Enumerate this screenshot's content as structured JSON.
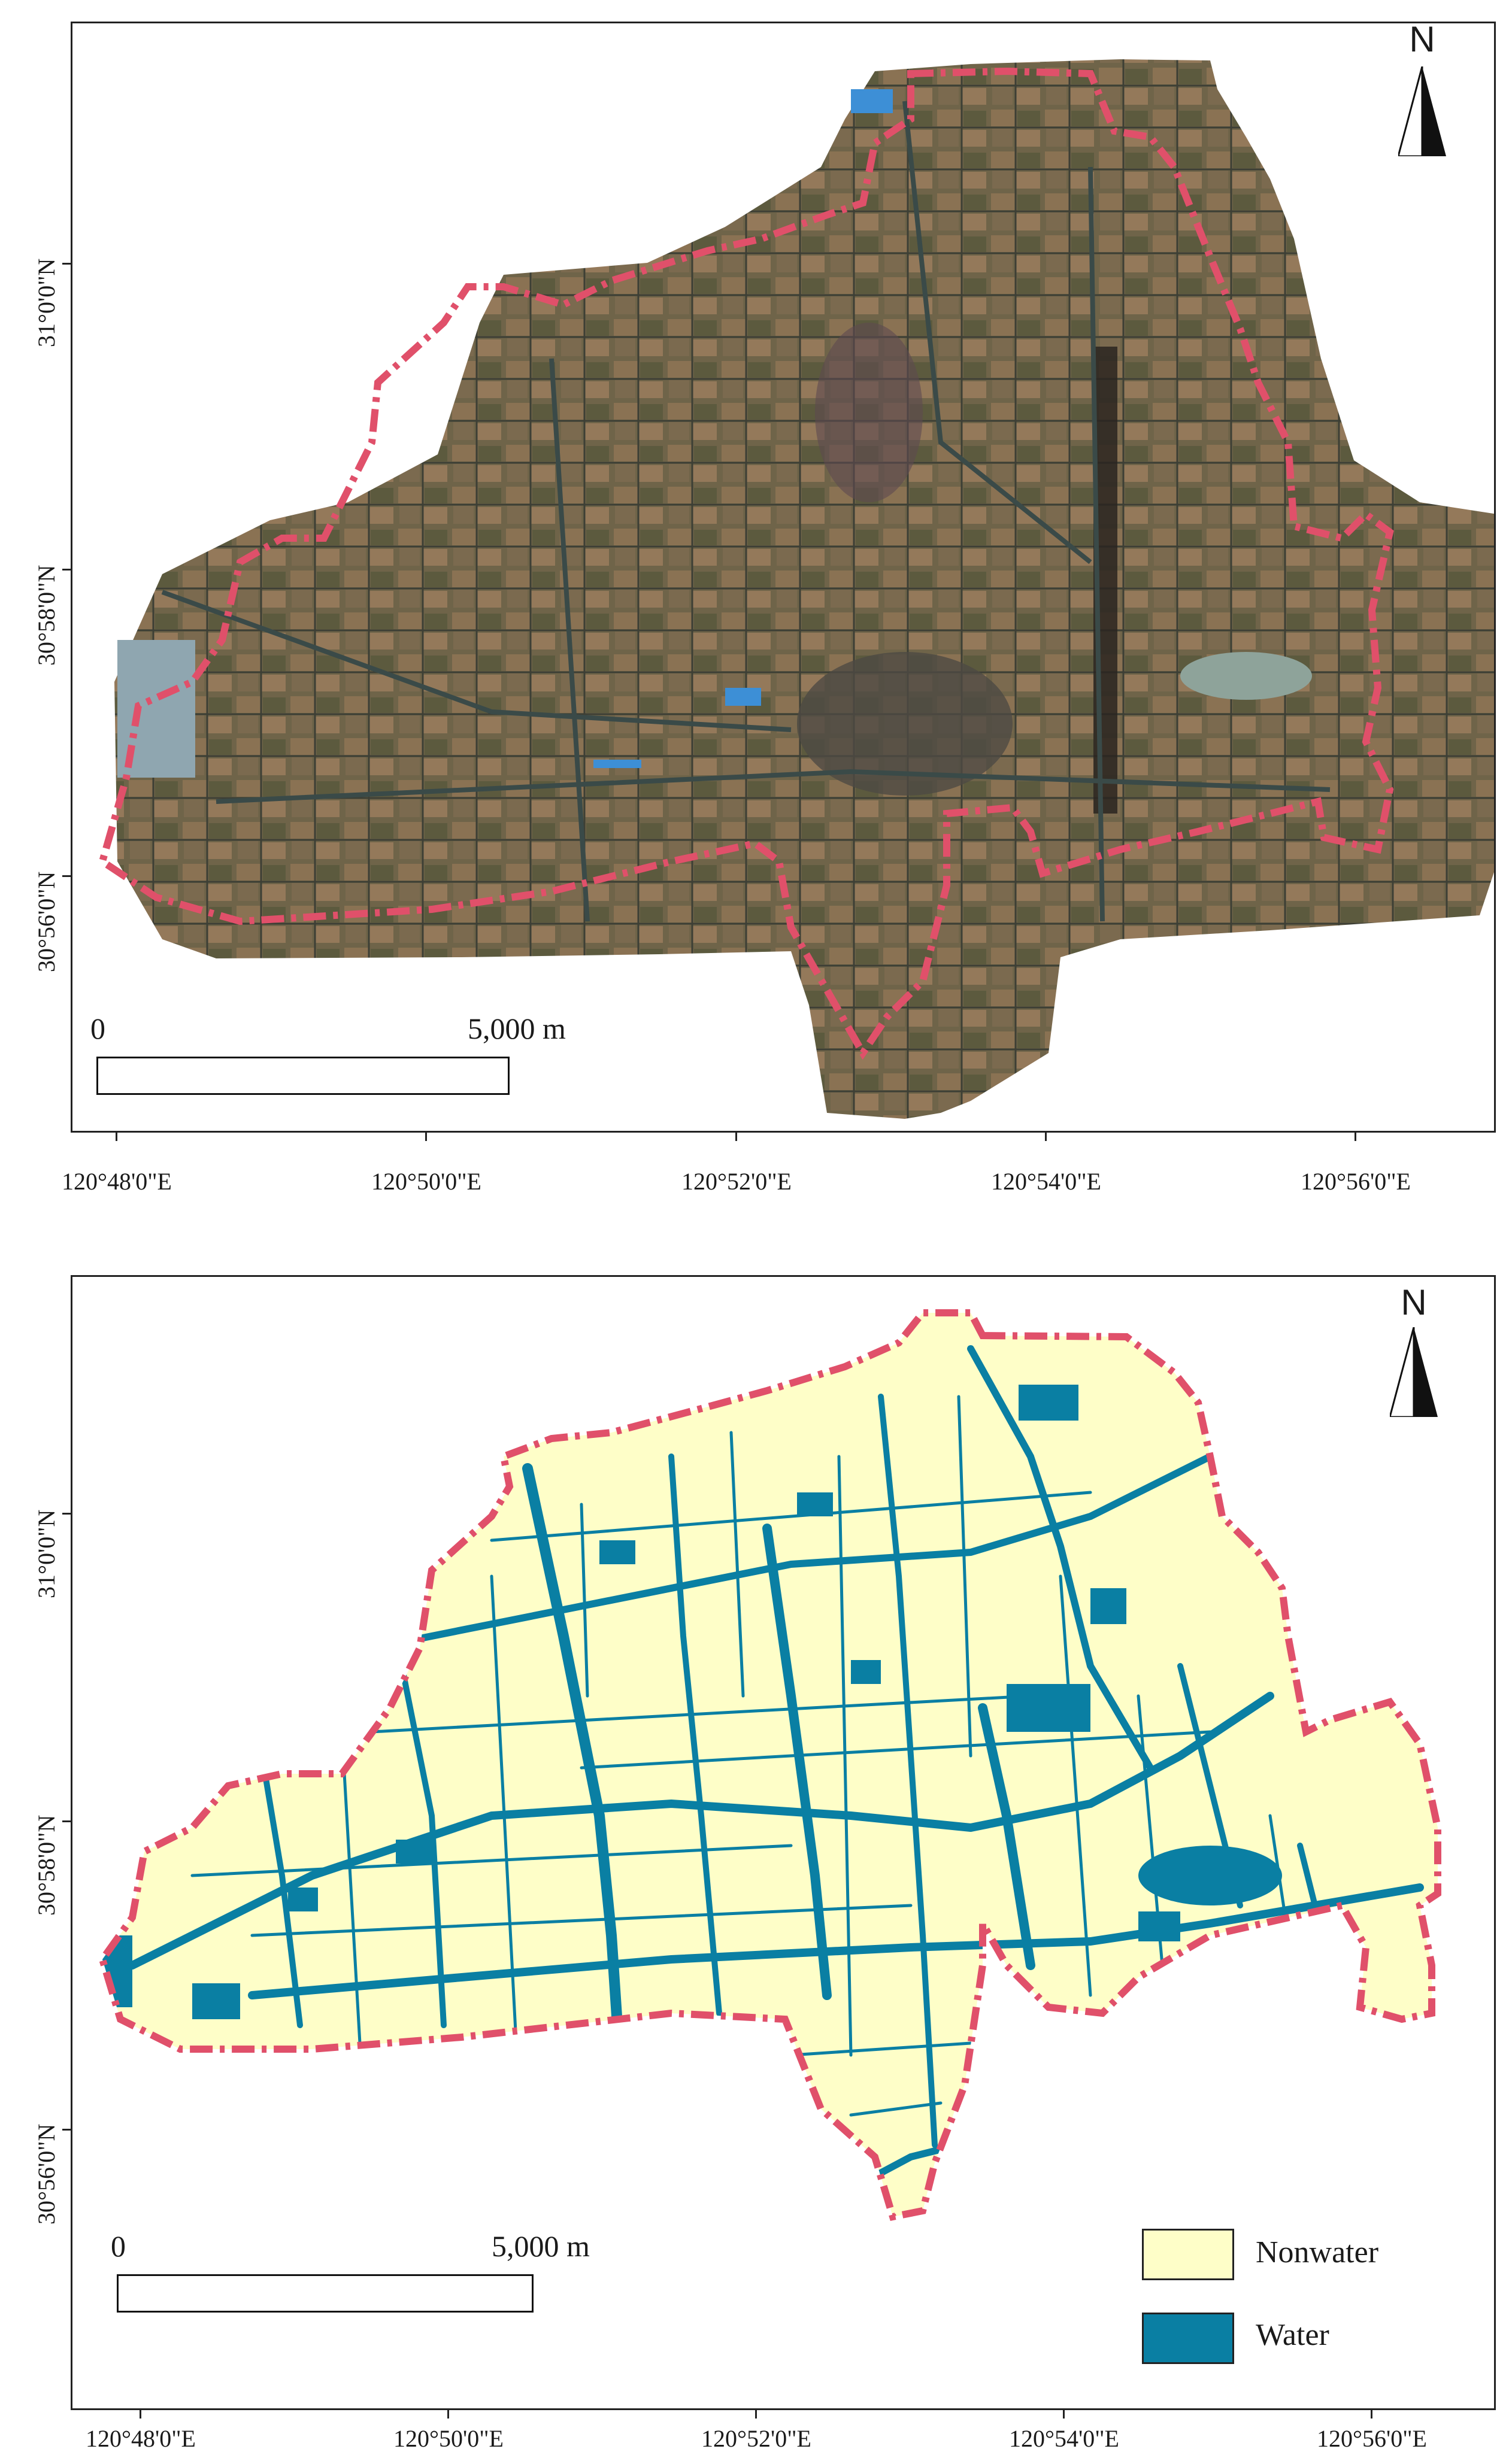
{
  "maps": [
    {
      "name": "aerial imagery map",
      "lat_labels": [
        "31°0'0\"N",
        "30°58'0\"N",
        "30°56'0\"N"
      ],
      "lon_labels": [
        "120°48'0\"E",
        "120°50'0\"E",
        "120°52'0\"E",
        "120°54'0\"E",
        "120°56'0\"E"
      ],
      "north": "N",
      "scale": {
        "start": "0",
        "end": "5,000 m"
      }
    },
    {
      "name": "water classification map",
      "lat_labels": [
        "31°0'0\"N",
        "30°58'0\"N",
        "30°56'0\"N"
      ],
      "lon_labels": [
        "120°48'0\"E",
        "120°50'0\"E",
        "120°52'0\"E",
        "120°54'0\"E",
        "120°56'0\"E"
      ],
      "north": "N",
      "scale": {
        "start": "0",
        "end": "5,000 m"
      },
      "legend": [
        {
          "label": "Nonwater",
          "color": "#fefec8"
        },
        {
          "label": "Water",
          "color": "#0a7fa3"
        }
      ]
    }
  ],
  "colors": {
    "boundary": "#e0506a",
    "water": "#0a7fa3",
    "nonwater": "#fefec8",
    "imagery": "#6e6248"
  }
}
